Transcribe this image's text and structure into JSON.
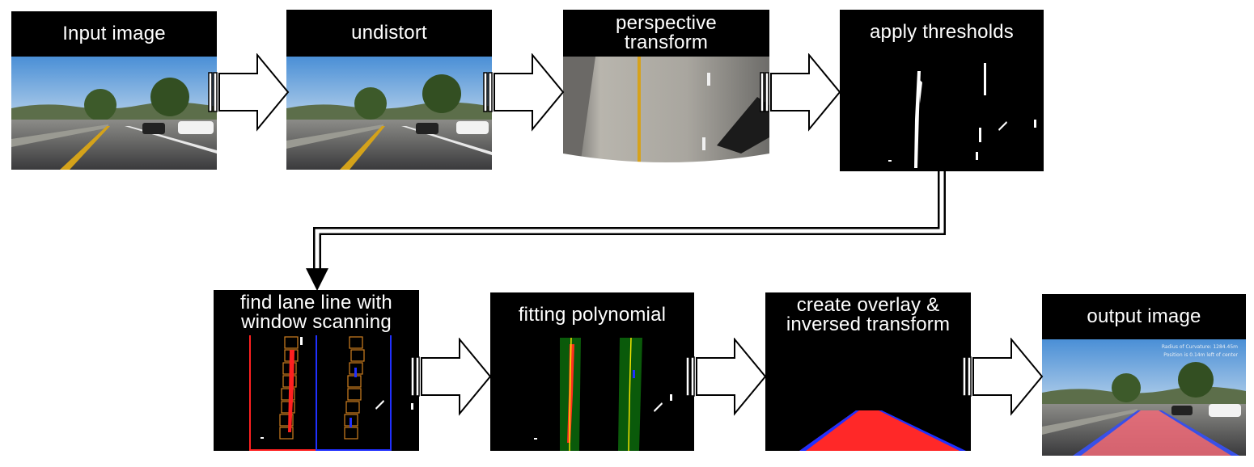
{
  "steps": {
    "input": "Input image",
    "undistort": "undistort",
    "perspective": "perspective\ntransform",
    "thresholds": "apply thresholds",
    "window": "find lane line with\nwindow scanning",
    "polynomial": "fitting polynomial",
    "overlay": "create overlay &\ninversed transform",
    "output": "output image"
  },
  "output_overlay": {
    "radius": "Radius of Curvature: 1284.45m",
    "position": "Position is 0.14m left of center"
  },
  "colors": {
    "label_bg": "#000000",
    "lane_left": "#ff2020",
    "lane_right": "#2030ff",
    "fill_green": "#0a5a0a",
    "fit_yellow": "#f2e400",
    "window_orange": "#d08020"
  }
}
